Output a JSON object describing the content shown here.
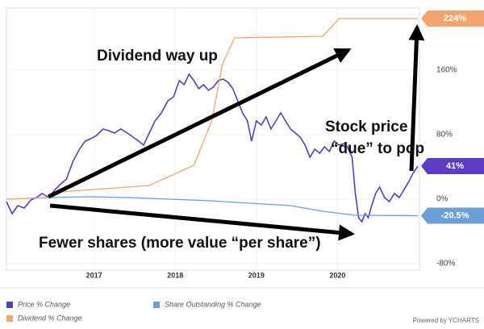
{
  "chart_data": {
    "type": "line",
    "xlim": [
      2015.92,
      2021.01
    ],
    "xticks": [
      2017,
      2018,
      2019,
      2020
    ],
    "ylim": [
      -88,
      237
    ],
    "yticks": [
      {
        "value": 160,
        "label": "160%"
      },
      {
        "value": 80,
        "label": "80%"
      },
      {
        "value": 0,
        "label": "0%"
      },
      {
        "value": -80,
        "label": "-80%"
      }
    ],
    "grid": true,
    "series": [
      {
        "name": "Price % Change",
        "color": "#5b3cc4",
        "x": [
          2015.92,
          2015.99,
          2016.06,
          2016.14,
          2016.22,
          2016.29,
          2016.36,
          2016.44,
          2016.52,
          2016.59,
          2016.66,
          2016.74,
          2016.82,
          2016.89,
          2016.96,
          2017.03,
          2017.11,
          2017.18,
          2017.25,
          2017.33,
          2017.41,
          2017.48,
          2017.55,
          2017.61,
          2017.68,
          2017.75,
          2017.83,
          2017.91,
          2017.98,
          2018.05,
          2018.11,
          2018.17,
          2018.23,
          2018.29,
          2018.35,
          2018.41,
          2018.47,
          2018.53,
          2018.59,
          2018.65,
          2018.71,
          2018.77,
          2018.83,
          2018.89,
          2018.94,
          2019.0,
          2019.06,
          2019.12,
          2019.18,
          2019.24,
          2019.3,
          2019.36,
          2019.42,
          2019.48,
          2019.54,
          2019.6,
          2019.66,
          2019.72,
          2019.78,
          2019.84,
          2019.9,
          2019.96,
          2020.02,
          2020.08,
          2020.12,
          2020.18,
          2020.22,
          2020.26,
          2020.3,
          2020.34,
          2020.38,
          2020.42,
          2020.47,
          2020.52,
          2020.58,
          2020.64,
          2020.7,
          2020.76,
          2020.82,
          2020.88,
          2020.93,
          2020.99
        ],
        "values": [
          -3,
          -18,
          -8,
          -11,
          -1,
          2,
          7,
          2,
          12,
          19,
          25,
          47,
          62,
          72,
          75,
          79,
          87,
          85,
          82,
          87,
          82,
          77,
          72,
          67,
          82,
          97,
          107,
          122,
          127,
          147,
          142,
          155,
          147,
          137,
          142,
          135,
          139,
          147,
          149,
          145,
          137,
          122,
          107,
          97,
          72,
          97,
          92,
          102,
          87,
          97,
          107,
          97,
          87,
          82,
          77,
          67,
          52,
          62,
          57,
          65,
          59,
          72,
          67,
          69,
          65,
          52,
          7,
          -23,
          -28,
          -18,
          -23,
          -8,
          7,
          15,
          2,
          -3,
          7,
          2,
          12,
          22,
          32,
          41
        ],
        "end_label": {
          "value": 41,
          "label": "41%"
        }
      },
      {
        "name": "Share Outstanding % Change",
        "color": "#6a9fd8",
        "x": [
          2015.92,
          2016.44,
          2016.93,
          2017.43,
          2017.93,
          2018.43,
          2018.92,
          2019.42,
          2019.82,
          2020.22,
          2020.99
        ],
        "values": [
          0,
          2,
          3,
          2,
          0,
          -2,
          -5,
          -8,
          -15,
          -20,
          -20.5
        ],
        "end_label": {
          "value": -20.5,
          "label": "-20.5%"
        }
      },
      {
        "name": "Dividend % Change",
        "color": "#f4a56e",
        "x": [
          2015.92,
          2016.44,
          2016.59,
          2017.68,
          2018.23,
          2018.45,
          2018.58,
          2018.73,
          2019.82,
          2020.02,
          2020.99
        ],
        "values": [
          0,
          2,
          9,
          17,
          42,
          97,
          167,
          200,
          202,
          224,
          224
        ],
        "end_label": {
          "value": 224,
          "label": "224%"
        }
      }
    ],
    "annotations": {
      "dividend": "Dividend way up",
      "stock": [
        "Stock price",
        "“due” to pop"
      ],
      "shares": "Fewer shares (more value “per share”)"
    },
    "credit": "Powered by YCHARTS"
  }
}
